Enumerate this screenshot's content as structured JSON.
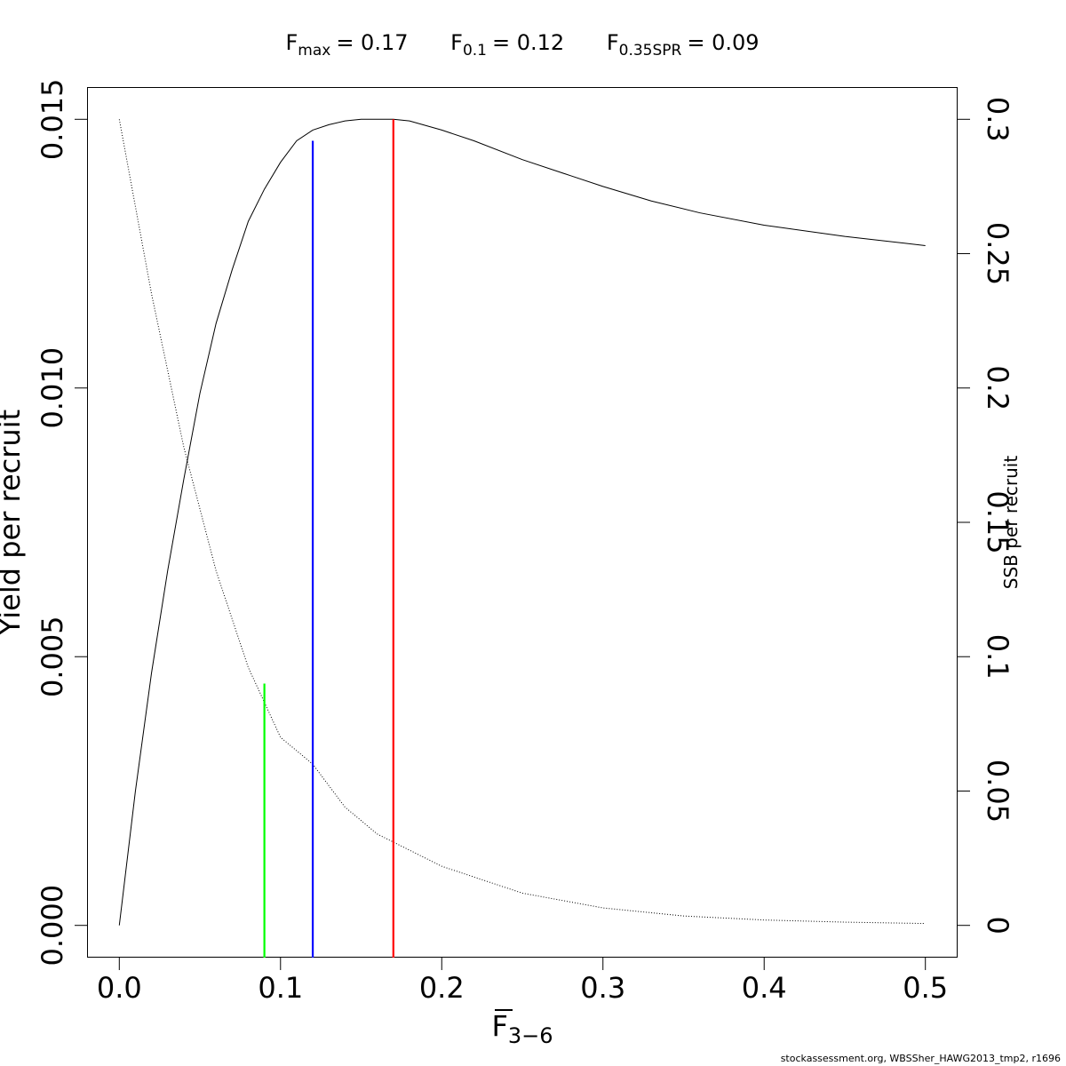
{
  "chart_data": {
    "type": "line",
    "title": {
      "fmax": {
        "base": "F",
        "sub": "max",
        "value": "= 0.17"
      },
      "f01": {
        "base": "F",
        "sub": "0.1",
        "value": "= 0.12"
      },
      "fspr": {
        "base": "F",
        "sub": "0.35SPR",
        "value": "= 0.09"
      }
    },
    "xlabel": {
      "base": "F",
      "sub": "3−6"
    },
    "ylabel": "Yield per recruit",
    "y2label": "SSB per recruit",
    "xlim": [
      -0.02,
      0.52
    ],
    "ylim": [
      -0.0006,
      0.0156
    ],
    "y2lim": [
      -0.012,
      0.312
    ],
    "x_ticks": [
      "0.0",
      "0.1",
      "0.2",
      "0.3",
      "0.4",
      "0.5"
    ],
    "x_tick_values": [
      0.0,
      0.1,
      0.2,
      0.3,
      0.4,
      0.5
    ],
    "y_ticks": [
      "0.000",
      "0.005",
      "0.010",
      "0.015"
    ],
    "y_tick_values": [
      0.0,
      0.005,
      0.01,
      0.015
    ],
    "y2_ticks": [
      "0",
      "0.05",
      "0.1",
      "0.15",
      "0.2",
      "0.25",
      "0.3"
    ],
    "y2_tick_values": [
      0,
      0.05,
      0.1,
      0.15,
      0.2,
      0.25,
      0.3
    ],
    "series": [
      {
        "axis": "left",
        "style": "solid",
        "color": "#000000",
        "x": [
          0,
          0.01,
          0.02,
          0.03,
          0.04,
          0.05,
          0.06,
          0.07,
          0.08,
          0.09,
          0.1,
          0.11,
          0.12,
          0.13,
          0.14,
          0.15,
          0.16,
          0.17,
          0.18,
          0.2,
          0.22,
          0.25,
          0.28,
          0.3,
          0.33,
          0.36,
          0.4,
          0.45,
          0.5
        ],
        "y": [
          0,
          0.0025,
          0.0047,
          0.0066,
          0.0083,
          0.0099,
          0.0112,
          0.0122,
          0.0131,
          0.0137,
          0.0142,
          0.0146,
          0.0148,
          0.0149,
          0.01497,
          0.015,
          0.015,
          0.015,
          0.01497,
          0.0148,
          0.0146,
          0.01425,
          0.01395,
          0.01375,
          0.01348,
          0.01326,
          0.01303,
          0.01282,
          0.01265
        ]
      },
      {
        "axis": "right",
        "style": "dotted",
        "color": "#000000",
        "x": [
          0,
          0.02,
          0.04,
          0.06,
          0.08,
          0.1,
          0.12,
          0.14,
          0.16,
          0.17,
          0.2,
          0.25,
          0.3,
          0.35,
          0.4,
          0.45,
          0.5
        ],
        "y": [
          0.3,
          0.235,
          0.178,
          0.132,
          0.096,
          0.07,
          0.06,
          0.044,
          0.034,
          0.031,
          0.022,
          0.012,
          0.0065,
          0.0035,
          0.002,
          0.0012,
          0.0007
        ]
      }
    ],
    "reference_lines": [
      {
        "name": "F0.35SPR",
        "x": 0.09,
        "y_top": 0.0045,
        "color": "#00ff00"
      },
      {
        "name": "F0.1",
        "x": 0.12,
        "y_top": 0.0146,
        "color": "#0000ff"
      },
      {
        "name": "Fmax",
        "x": 0.17,
        "y_top": 0.015,
        "color": "#ff0000"
      }
    ]
  },
  "footer": "stockassessment.org, WBSSher_HAWG2013_tmp2, r1696"
}
